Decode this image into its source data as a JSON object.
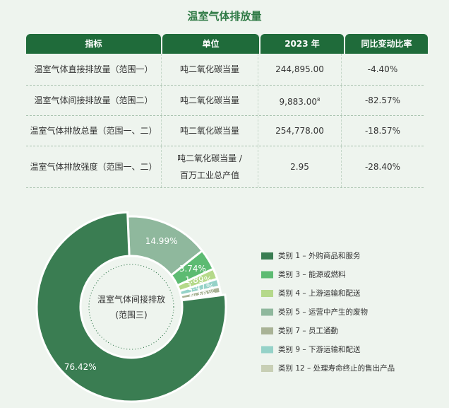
{
  "header": {
    "title": "温室气体排放量"
  },
  "table": {
    "columns": [
      "指标",
      "单位",
      "2023 年",
      "同比变动比率"
    ],
    "rows": [
      [
        {
          "text": "温室气体直接排放量（范围一）"
        },
        {
          "lines": [
            "吨二氧化碳当量"
          ]
        },
        {
          "text": "244,895.00"
        },
        {
          "text": "-4.40%"
        }
      ],
      [
        {
          "text": "温室气体间接排放量（范围二）"
        },
        {
          "lines": [
            "吨二氧化碳当量"
          ]
        },
        {
          "text": "9,883.00",
          "sup": "8"
        },
        {
          "text": "-82.57%"
        }
      ],
      [
        {
          "text": "温室气体排放总量（范围一、二）"
        },
        {
          "lines": [
            "吨二氧化碳当量"
          ]
        },
        {
          "text": "254,778.00"
        },
        {
          "text": "-18.57%"
        }
      ],
      [
        {
          "text": "温室气体排放强度（范围一、二）"
        },
        {
          "lines": [
            "吨二氧化碳当量 /",
            "百万工业总产值"
          ]
        },
        {
          "text": "2.95"
        },
        {
          "text": "-28.40%"
        }
      ]
    ]
  },
  "chart_data": {
    "type": "pie",
    "center_label": [
      "温室气体间接排放",
      "(范围三)"
    ],
    "values": [
      14.99,
      3.74,
      1.89,
      1.41,
      1.16,
      0.39,
      76.42
    ],
    "value_labels": [
      "14.99%",
      "3.74%",
      "1.89%",
      "1.41%",
      "1.16%",
      "0.39%",
      "76.42%"
    ],
    "colors": [
      "#8fb89d",
      "#5dbb72",
      "#b5d98a",
      "#95d2c8",
      "#a9b396",
      "#c8cfb5",
      "#3a7d52"
    ],
    "legend": [
      {
        "name": "类别 1 – 外购商品和服务",
        "color": "#3a7d52"
      },
      {
        "name": "类别 3 – 能源或燃料",
        "color": "#5dbb72"
      },
      {
        "name": "类别 4 – 上游运输和配送",
        "color": "#b5d98a"
      },
      {
        "name": "类别 5 – 运营中产生的废物",
        "color": "#8fb89d"
      },
      {
        "name": "类别 7 – 员工通勤",
        "color": "#a9b396"
      },
      {
        "name": "类别 9 – 下游运输和配送",
        "color": "#95d2c8"
      },
      {
        "name": "类别 12 – 处理寿命终止的售出产品",
        "color": "#c8cfb5"
      }
    ]
  }
}
